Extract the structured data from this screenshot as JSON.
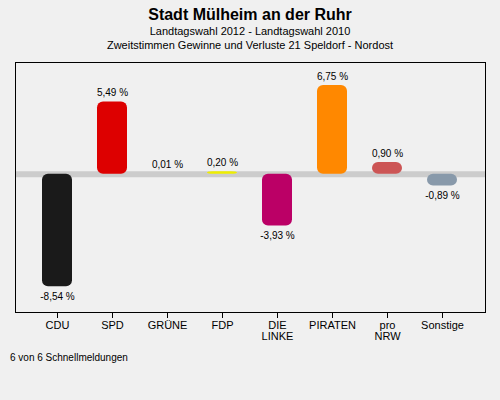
{
  "chart_data": {
    "type": "bar",
    "title": "Stadt Mülheim an der Ruhr",
    "subtitle": [
      "Landtagswahl 2012 - Landtagswahl 2010",
      "Zweitstimmen Gewinne und Verluste 21 Speldorf - Nordost"
    ],
    "footer": "6 von 6 Schnellmeldungen",
    "categories": [
      "CDU",
      "SPD",
      "GRÜNE",
      "FDP",
      "DIE\nLINKE",
      "PIRATEN",
      "pro\nNRW",
      "Sonstige"
    ],
    "values": [
      -8.54,
      5.49,
      0.01,
      0.2,
      -3.93,
      6.75,
      0.9,
      -0.89
    ],
    "value_labels": [
      "-8,54 %",
      "5,49 %",
      "0,01 %",
      "0,20 %",
      "-3,93 %",
      "6,75 %",
      "0,90 %",
      "-0,89 %"
    ],
    "colors": [
      "#1a1a1a",
      "#dd0000",
      "#22bb00",
      "#eeee00",
      "#bb0066",
      "#ff8800",
      "#cc5555",
      "#8899aa"
    ],
    "ylim": [
      -10.5,
      8.5
    ],
    "yticks": [],
    "grid": false,
    "data_labels": true,
    "tick_labels": "x"
  }
}
